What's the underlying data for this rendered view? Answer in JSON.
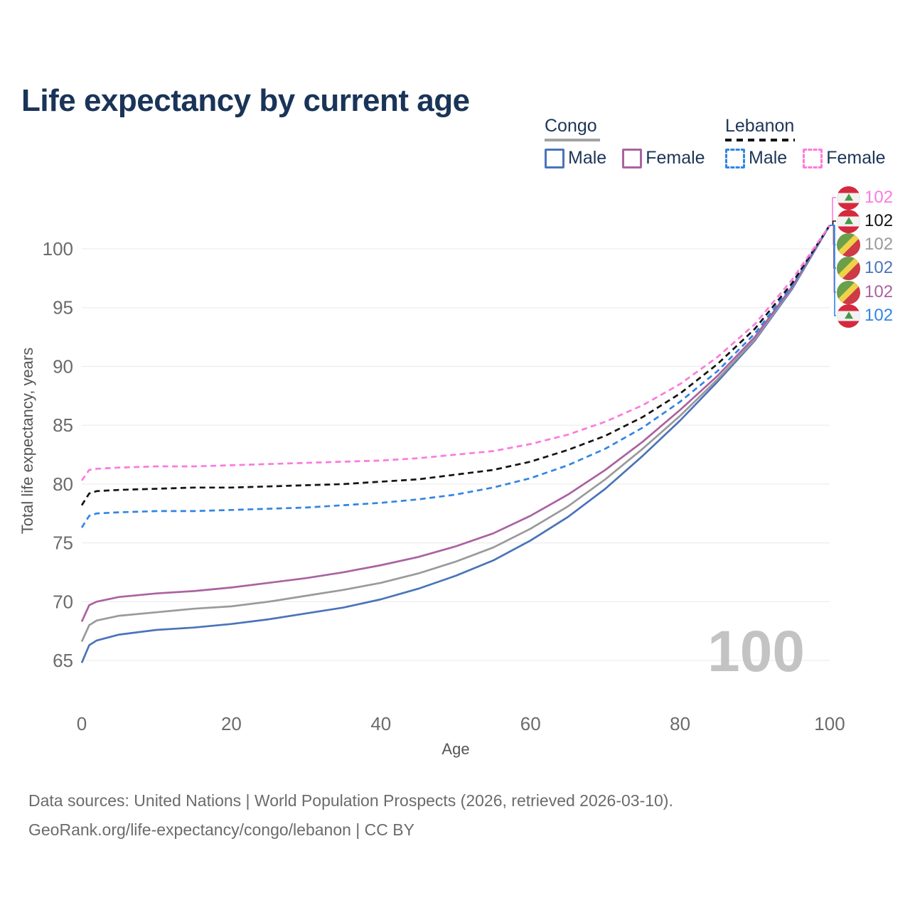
{
  "title": "Life expectancy by current age",
  "legend": {
    "congo": {
      "title": "Congo",
      "male": "Male",
      "female": "Female"
    },
    "lebanon": {
      "title": "Lebanon",
      "male": "Male",
      "female": "Female"
    }
  },
  "footer": {
    "line1": "Data sources: United Nations | World Population Prospects (2026, retrieved 2026-03-10).",
    "line2": "GeoRank.org/life-expectancy/congo/lebanon | CC BY"
  },
  "chart_data": {
    "type": "line",
    "title": "Life expectancy by current age",
    "xlabel": "Age",
    "ylabel": "Total life expectancy, years",
    "x_ticks": [
      0,
      20,
      40,
      60,
      80,
      100
    ],
    "y_ticks": [
      65,
      70,
      75,
      80,
      85,
      90,
      95,
      100
    ],
    "xlim": [
      0,
      100
    ],
    "ylim": [
      63,
      103.5
    ],
    "grid": "horizontal",
    "legend_position": "top-right",
    "hover_age_watermark": "100",
    "x": [
      0,
      1,
      2,
      5,
      10,
      15,
      20,
      25,
      30,
      35,
      40,
      45,
      50,
      55,
      60,
      65,
      70,
      75,
      80,
      85,
      90,
      95,
      100
    ],
    "series": [
      {
        "name": "Congo Male",
        "country": "Congo",
        "sex": "Male",
        "color": "#4a74b9",
        "dash": false,
        "values": [
          64.8,
          66.3,
          66.7,
          67.2,
          67.6,
          67.8,
          68.1,
          68.5,
          69.0,
          69.5,
          70.2,
          71.1,
          72.2,
          73.5,
          75.2,
          77.2,
          79.6,
          82.4,
          85.4,
          88.7,
          92.2,
          96.6,
          102
        ]
      },
      {
        "name": "Congo",
        "country": "Congo",
        "sex": "Both",
        "color": "#9a9a9a",
        "dash": false,
        "values": [
          66.6,
          68.0,
          68.4,
          68.8,
          69.1,
          69.4,
          69.6,
          70.0,
          70.5,
          71.0,
          71.6,
          72.4,
          73.4,
          74.6,
          76.2,
          78.1,
          80.4,
          83.0,
          85.8,
          88.9,
          92.3,
          96.7,
          102
        ]
      },
      {
        "name": "Congo Female",
        "country": "Congo",
        "sex": "Female",
        "color": "#ab62a1",
        "dash": false,
        "values": [
          68.3,
          69.7,
          70.0,
          70.4,
          70.7,
          70.9,
          71.2,
          71.6,
          72.0,
          72.5,
          73.1,
          73.8,
          74.7,
          75.8,
          77.3,
          79.1,
          81.2,
          83.6,
          86.3,
          89.2,
          92.5,
          96.8,
          102
        ]
      },
      {
        "name": "Lebanon Male",
        "country": "Lebanon",
        "sex": "Male",
        "color": "#3285e4",
        "dash": true,
        "values": [
          76.3,
          77.3,
          77.5,
          77.6,
          77.7,
          77.7,
          77.8,
          77.9,
          78.0,
          78.2,
          78.4,
          78.7,
          79.1,
          79.7,
          80.5,
          81.6,
          83.0,
          84.8,
          87.0,
          89.6,
          92.8,
          96.9,
          102
        ]
      },
      {
        "name": "Lebanon",
        "country": "Lebanon",
        "sex": "Both",
        "color": "#141414",
        "dash": true,
        "values": [
          78.2,
          79.2,
          79.4,
          79.5,
          79.6,
          79.7,
          79.7,
          79.8,
          79.9,
          80.0,
          80.2,
          80.4,
          80.8,
          81.2,
          81.9,
          82.9,
          84.1,
          85.7,
          87.7,
          90.2,
          93.2,
          97.1,
          102
        ]
      },
      {
        "name": "Lebanon Female",
        "country": "Lebanon",
        "sex": "Female",
        "color": "#fc7ade",
        "dash": true,
        "values": [
          80.3,
          81.2,
          81.3,
          81.4,
          81.5,
          81.5,
          81.6,
          81.7,
          81.8,
          81.9,
          82.0,
          82.2,
          82.5,
          82.8,
          83.4,
          84.2,
          85.3,
          86.7,
          88.5,
          90.8,
          93.6,
          97.4,
          102
        ]
      }
    ],
    "end_labels": [
      {
        "series": "Lebanon Female",
        "flag": "lebanon",
        "value": "102",
        "color": "#fc7ade"
      },
      {
        "series": "Lebanon",
        "flag": "lebanon",
        "value": "102",
        "color": "#141414"
      },
      {
        "series": "Congo",
        "flag": "congo",
        "value": "102",
        "color": "#9a9a9a"
      },
      {
        "series": "Congo Male",
        "flag": "congo",
        "value": "102",
        "color": "#4a74b9"
      },
      {
        "series": "Congo Female",
        "flag": "congo",
        "value": "102",
        "color": "#ab62a1"
      },
      {
        "series": "Lebanon Male",
        "flag": "lebanon",
        "value": "102",
        "color": "#3285e4"
      }
    ]
  }
}
